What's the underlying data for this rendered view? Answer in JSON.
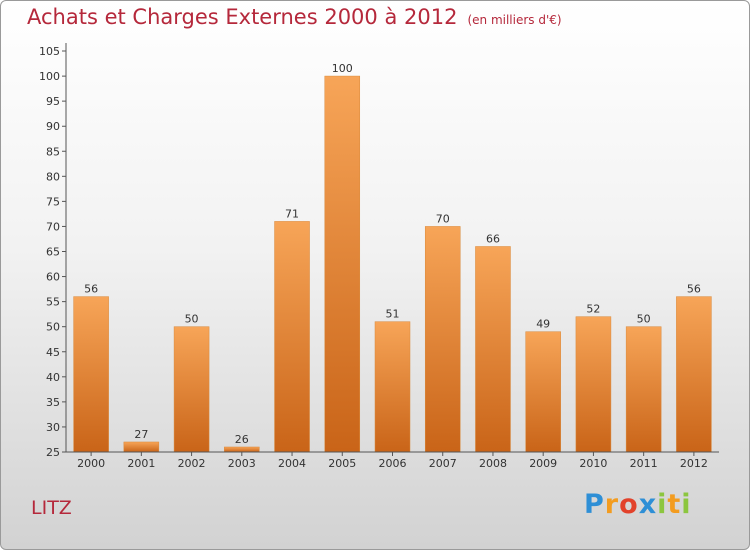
{
  "chart_data": {
    "type": "bar",
    "title": "Achats et Charges Externes 2000 à 2012",
    "subtitle": "(en milliers d'€)",
    "categories": [
      "2000",
      "2001",
      "2002",
      "2003",
      "2004",
      "2005",
      "2006",
      "2007",
      "2008",
      "2009",
      "2010",
      "2011",
      "2012"
    ],
    "values": [
      56,
      27,
      50,
      26,
      71,
      100,
      51,
      70,
      66,
      49,
      52,
      50,
      56
    ],
    "xlabel": "",
    "ylabel": "",
    "ylim": [
      25,
      105
    ],
    "yticks": [
      25,
      30,
      35,
      40,
      45,
      50,
      55,
      60,
      65,
      70,
      75,
      80,
      85,
      90,
      95,
      100,
      105
    ],
    "grid": false,
    "bar_color_top": "#f7a558",
    "bar_color_bottom": "#c96418"
  },
  "location": "LITZ",
  "logo": "Proxiti",
  "colors": {
    "title": "#b5283b",
    "axis": "#555555"
  }
}
